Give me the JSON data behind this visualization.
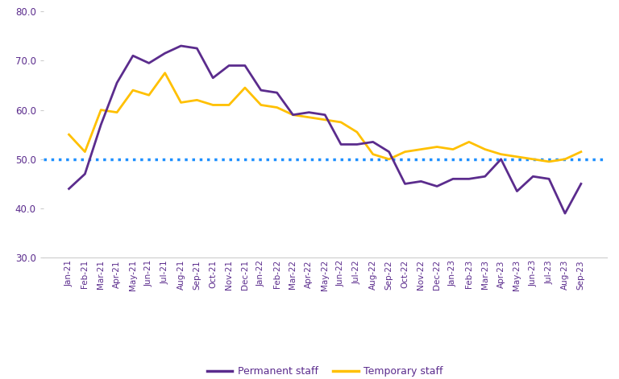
{
  "labels": [
    "Jan-21",
    "Feb-21",
    "Mar-21",
    "Apr-21",
    "May-21",
    "Jun-21",
    "Jul-21",
    "Aug-21",
    "Sep-21",
    "Oct-21",
    "Nov-21",
    "Dec-21",
    "Jan-22",
    "Feb-22",
    "Mar-22",
    "Apr-22",
    "May-22",
    "Jun-22",
    "Jul-22",
    "Aug-22",
    "Sep-22",
    "Oct-22",
    "Nov-22",
    "Dec-22",
    "Jan-23",
    "Feb-23",
    "Mar-23",
    "Apr-23",
    "May-23",
    "Jun-23",
    "Jul-23",
    "Aug-23",
    "Sep-23"
  ],
  "permanent": [
    44.0,
    47.0,
    57.0,
    65.5,
    71.0,
    69.5,
    71.5,
    73.0,
    72.5,
    66.5,
    69.0,
    69.0,
    64.0,
    63.5,
    59.0,
    59.5,
    59.0,
    53.0,
    53.0,
    53.5,
    51.5,
    45.0,
    45.5,
    44.5,
    46.0,
    46.0,
    46.5,
    50.0,
    43.5,
    46.5,
    46.0,
    39.0,
    45.0
  ],
  "temporary": [
    55.0,
    51.5,
    60.0,
    59.5,
    64.0,
    63.0,
    67.5,
    61.5,
    62.0,
    61.0,
    61.0,
    64.5,
    61.0,
    60.5,
    59.0,
    58.5,
    58.0,
    57.5,
    55.5,
    51.0,
    50.0,
    51.5,
    52.0,
    52.5,
    52.0,
    53.5,
    52.0,
    51.0,
    50.5,
    50.0,
    49.5,
    50.0,
    51.5
  ],
  "reference_line": 50.0,
  "permanent_color": "#5B2C8D",
  "temporary_color": "#FFC000",
  "reference_color": "#1E90FF",
  "ylim": [
    30.0,
    80.0
  ],
  "yticks": [
    30.0,
    40.0,
    50.0,
    60.0,
    70.0,
    80.0
  ],
  "legend_permanent": "Permanent staff",
  "legend_temporary": "Temporary staff",
  "line_width": 2.0,
  "tick_color": "#5B2C8D",
  "tick_fontsize": 7.5,
  "ytick_fontsize": 8.5
}
